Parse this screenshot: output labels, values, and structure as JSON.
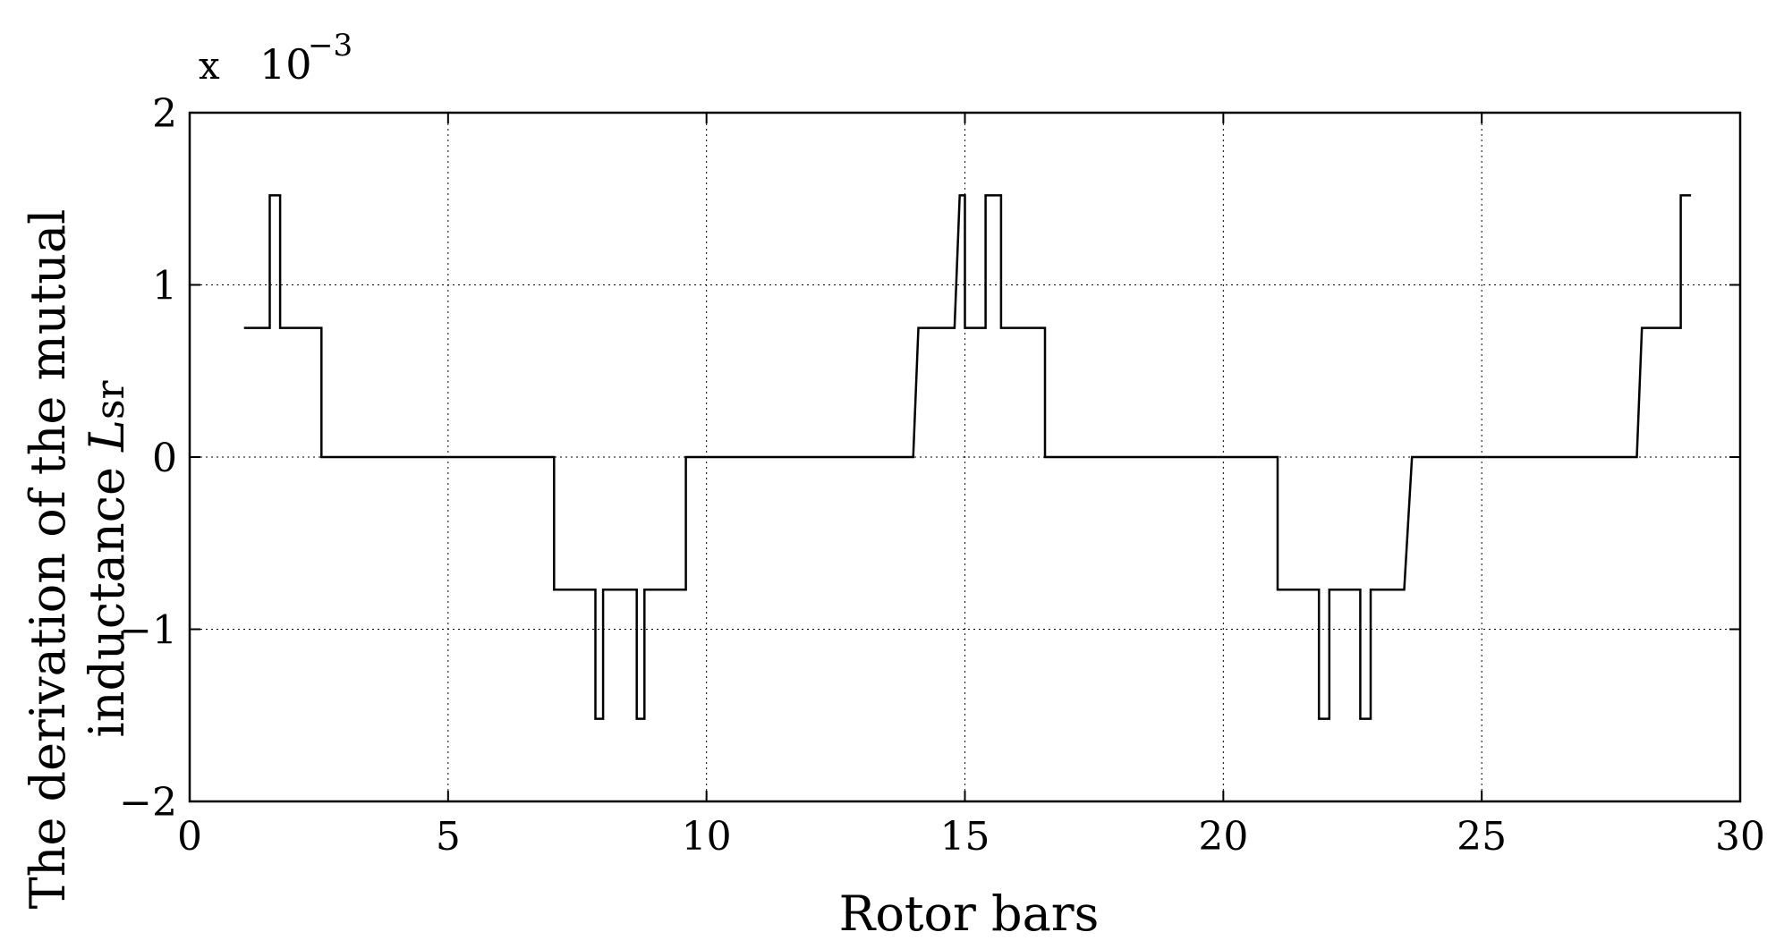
{
  "chart_data": {
    "type": "line",
    "title": "",
    "xlabel": "Rotor bars",
    "ylabel_line1": "The derivation of the mutual",
    "ylabel_line2_prefix": "inductance ",
    "ylabel_symbol": "L",
    "ylabel_subscript": "sr",
    "y_multiplier_x": "x",
    "y_multiplier_base": "10",
    "y_multiplier_exp": "−3",
    "xlim": [
      0,
      30
    ],
    "ylim": [
      -2,
      2
    ],
    "x_ticks": [
      0,
      5,
      10,
      15,
      20,
      25,
      30
    ],
    "x_tick_labels": [
      "0",
      "5",
      "10",
      "15",
      "20",
      "25",
      "30"
    ],
    "y_ticks": [
      -2,
      -1,
      0,
      1,
      2
    ],
    "y_tick_labels": [
      "−2",
      "−1",
      "0",
      "1",
      "2"
    ],
    "grid": true,
    "grid_style": "dotted",
    "line_color": "#000000",
    "series": [
      {
        "x": [
          1.05,
          1.55,
          1.55,
          1.75,
          1.75,
          2.55,
          2.55,
          7.05,
          7.05,
          7.85,
          7.85,
          8.0,
          8.0,
          8.65,
          8.65,
          8.8,
          8.8,
          9.6,
          9.6,
          14.0,
          14.1,
          14.8,
          14.9,
          15.0,
          15.0,
          15.4,
          15.4,
          15.7,
          15.7,
          16.55,
          16.55,
          21.05,
          21.05,
          21.85,
          21.85,
          22.05,
          22.05,
          22.65,
          22.65,
          22.85,
          22.85,
          23.5,
          23.65,
          28.0,
          28.1,
          28.85,
          28.85,
          29.05
        ],
        "y": [
          0.75,
          0.75,
          1.52,
          1.52,
          0.75,
          0.75,
          0,
          0,
          -0.77,
          -0.77,
          -1.52,
          -1.52,
          -0.77,
          -0.77,
          -1.52,
          -1.52,
          -0.77,
          -0.77,
          0,
          0,
          0.75,
          0.75,
          1.52,
          1.52,
          0.75,
          0.75,
          1.52,
          1.52,
          0.75,
          0.75,
          0,
          0,
          -0.77,
          -0.77,
          -1.52,
          -1.52,
          -0.77,
          -0.77,
          -1.52,
          -1.52,
          -0.77,
          -0.77,
          0,
          0,
          0.75,
          0.75,
          1.52,
          1.52
        ]
      }
    ]
  }
}
